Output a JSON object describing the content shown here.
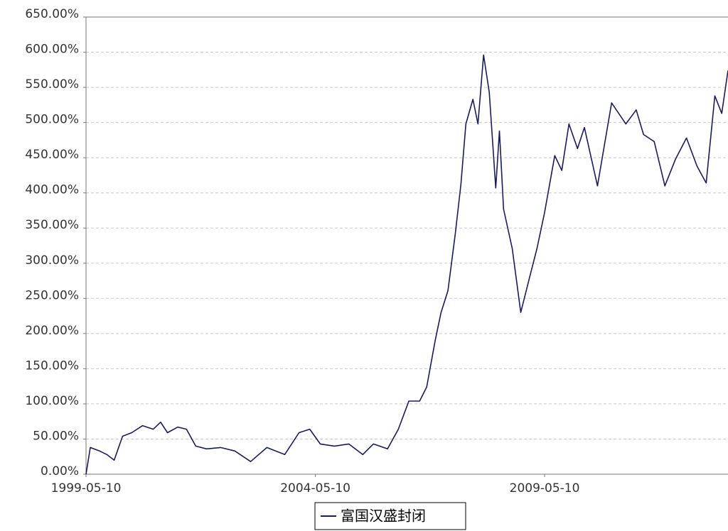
{
  "chart_data": {
    "type": "line",
    "x": [
      "1999-05-10",
      "1999-06-13",
      "1999-08-26",
      "1999-10-23",
      "1999-12-20",
      "2000-02-25",
      "2000-05-08",
      "2000-08-03",
      "2000-10-27",
      "2000-12-24",
      "2001-02-17",
      "2001-05-10",
      "2001-07-18",
      "2001-09-30",
      "2001-12-25",
      "2002-04-16",
      "2002-08-08",
      "2002-12-11",
      "2003-04-20",
      "2003-09-09",
      "2004-01-01",
      "2004-03-26",
      "2004-06-18",
      "2004-10-09",
      "2005-01-31",
      "2005-05-23",
      "2005-08-15",
      "2005-12-06",
      "2006-03-02",
      "2006-05-25",
      "2006-08-18",
      "2006-10-14",
      "2006-12-20",
      "2007-02-05",
      "2007-04-01",
      "2007-05-29",
      "2007-07-13",
      "2007-08-22",
      "2007-10-17",
      "2007-11-26",
      "2008-01-10",
      "2008-02-24",
      "2008-04-16",
      "2008-05-15",
      "2008-06-17",
      "2008-08-25",
      "2008-11-01",
      "2009-01-12",
      "2009-03-10",
      "2009-05-10",
      "2009-07-30",
      "2009-09-24",
      "2009-11-20",
      "2010-01-27",
      "2010-03-23",
      "2010-07-05",
      "2010-10-26",
      "2011-02-16",
      "2011-05-10",
      "2011-07-07",
      "2011-09-30",
      "2011-12-24",
      "2012-03-18",
      "2012-06-13",
      "2012-09-05",
      "2012-11-17",
      "2013-01-25",
      "2013-03-21",
      "2013-05-10"
    ],
    "series": [
      {
        "name": "富国汉盛封闭",
        "color": "#1b1b5c",
        "values": [
          0,
          38,
          33,
          28,
          20,
          54,
          59,
          69,
          64,
          74,
          59,
          67,
          64,
          40,
          36,
          38,
          33,
          18,
          38,
          28,
          59,
          64,
          43,
          40,
          43,
          28,
          43,
          36,
          64,
          104,
          104,
          124,
          190,
          230,
          261,
          341,
          412,
          498,
          533,
          498,
          596,
          543,
          407,
          488,
          377,
          321,
          230,
          281,
          321,
          372,
          453,
          432,
          498,
          463,
          493,
          410,
          528,
          498,
          518,
          483,
          473,
          410,
          448,
          478,
          438,
          414,
          538,
          513,
          574
        ]
      }
    ],
    "xlim": [
      "1999-05-10",
      "2013-05-10"
    ],
    "xticks": [
      "1999-05-10",
      "2004-05-10",
      "2009-05-10"
    ],
    "ylim": [
      0,
      650
    ],
    "yticks": [
      {
        "value": 0,
        "label": "0.00%"
      },
      {
        "value": 50,
        "label": "50.00%"
      },
      {
        "value": 100,
        "label": "100.00%"
      },
      {
        "value": 150,
        "label": "150.00%"
      },
      {
        "value": 200,
        "label": "200.00%"
      },
      {
        "value": 250,
        "label": "250.00%"
      },
      {
        "value": 300,
        "label": "300.00%"
      },
      {
        "value": 350,
        "label": "350.00%"
      },
      {
        "value": 400,
        "label": "400.00%"
      },
      {
        "value": 450,
        "label": "450.00%"
      },
      {
        "value": 500,
        "label": "500.00%"
      },
      {
        "value": 550,
        "label": "550.00%"
      },
      {
        "value": 600,
        "label": "600.00%"
      },
      {
        "value": 650,
        "label": "650.00%"
      }
    ],
    "grid": true
  }
}
